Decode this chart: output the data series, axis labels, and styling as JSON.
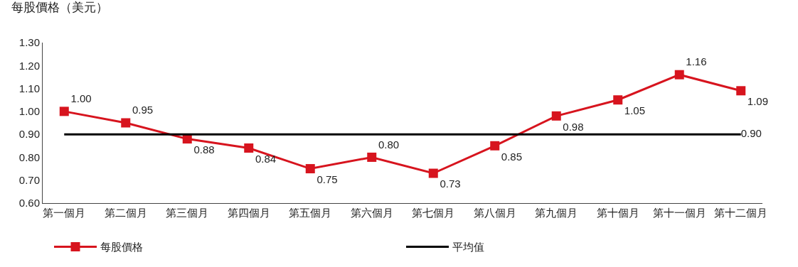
{
  "chart_data": {
    "type": "line",
    "ylabel": "每股價格（美元）",
    "categories": [
      "第一個月",
      "第二個月",
      "第三個月",
      "第四個月",
      "第五個月",
      "第六個月",
      "第七個月",
      "第八個月",
      "第九個月",
      "第十個月",
      "第十一個月",
      "第十二個月"
    ],
    "series": [
      {
        "name": "每股價格",
        "color": "#d7141e",
        "marker": "square",
        "values": [
          1.0,
          0.95,
          0.88,
          0.84,
          0.75,
          0.8,
          0.73,
          0.85,
          0.98,
          1.05,
          1.16,
          1.09
        ],
        "value_labels": [
          "1.00",
          "0.95",
          "0.88",
          "0.84",
          "0.75",
          "0.80",
          "0.73",
          "0.85",
          "0.98",
          "1.05",
          "1.16",
          "1.09"
        ]
      },
      {
        "name": "平均值",
        "color": "#000000",
        "marker": "none",
        "values": [
          0.9,
          0.9,
          0.9,
          0.9,
          0.9,
          0.9,
          0.9,
          0.9,
          0.9,
          0.9,
          0.9,
          0.9
        ],
        "value_labels": [
          null,
          null,
          null,
          null,
          null,
          null,
          null,
          null,
          null,
          null,
          null,
          "0.90"
        ]
      }
    ],
    "ylim": [
      0.6,
      1.3
    ],
    "yticks": [
      {
        "value": 0.6,
        "label": "0.60"
      },
      {
        "value": 0.7,
        "label": "0.70"
      },
      {
        "value": 0.8,
        "label": "0.80"
      },
      {
        "value": 0.9,
        "label": "0.90"
      },
      {
        "value": 1.0,
        "label": "1.00"
      },
      {
        "value": 1.1,
        "label": "1.10"
      },
      {
        "value": 1.2,
        "label": "1.20"
      },
      {
        "value": 1.3,
        "label": "1.30"
      }
    ],
    "grid": false,
    "legend": "bottom",
    "line_style": "solid"
  }
}
